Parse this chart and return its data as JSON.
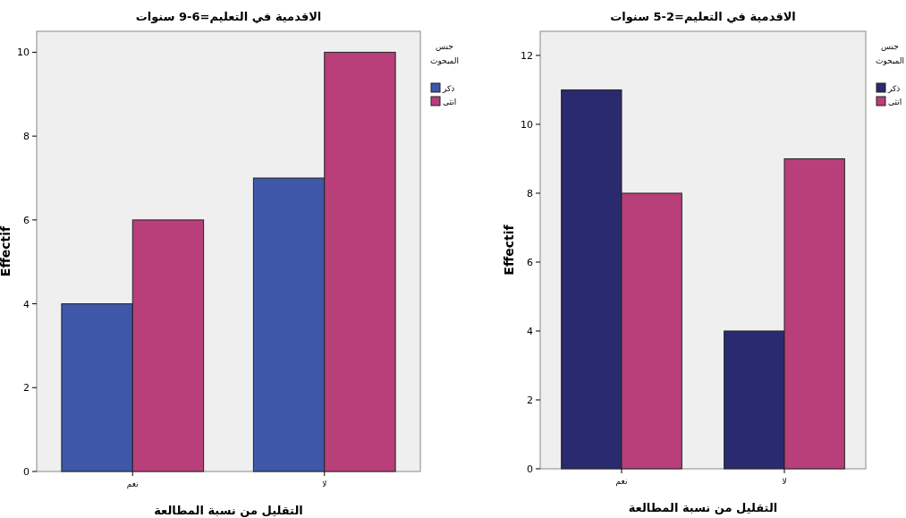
{
  "chart_data": [
    {
      "type": "bar",
      "title": "الاقدمية في التعليم=6-9 سنوات",
      "xlabel": "التقليل من نسبة المطالعة",
      "ylabel": "Effectif",
      "legend_title": "جنس المبحوث",
      "legend": "right",
      "categories": [
        "نعم",
        "لا"
      ],
      "ylim": [
        0,
        10.5
      ],
      "yticks": [
        0,
        2,
        4,
        6,
        8,
        10
      ],
      "series": [
        {
          "name": "ذكر",
          "color": "#3f57a8",
          "values": [
            4,
            7
          ]
        },
        {
          "name": "انثى",
          "color": "#b83f7a",
          "values": [
            6,
            10
          ]
        }
      ]
    },
    {
      "type": "bar",
      "title": "الاقدمية في التعليم=2-5 سنوات",
      "xlabel": "التقليل من نسبة المطالعة",
      "ylabel": "Effectif",
      "legend_title": "جنس المبحوث",
      "legend": "right",
      "categories": [
        "نعم",
        "لا"
      ],
      "ylim": [
        0,
        12.7
      ],
      "yticks": [
        0,
        2,
        4,
        6,
        8,
        10,
        12
      ],
      "series": [
        {
          "name": "ذكر",
          "color": "#2a2a6e",
          "values": [
            11,
            4
          ]
        },
        {
          "name": "انثى",
          "color": "#b83f7a",
          "values": [
            8,
            9
          ]
        }
      ]
    }
  ]
}
